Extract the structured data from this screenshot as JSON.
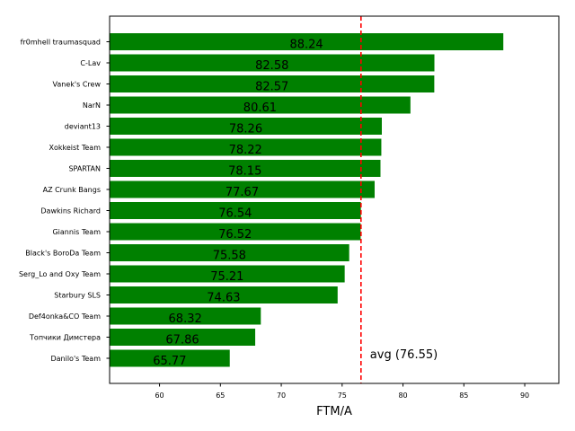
{
  "chart_data": {
    "type": "bar",
    "orientation": "horizontal",
    "title": "",
    "xlabel": "FTM/A",
    "ylabel": "",
    "categories": [
      "fr0mhell traumasquad",
      "C-Lav",
      "Vanek's Crew",
      "NarN",
      "deviant13",
      "Xokkeist Team",
      "SPARTAN",
      "AZ Crunk Bangs",
      "Dawkins Richard",
      "Giannis Team",
      "Black's BoroDa Team",
      "Serg_Lo and Oxy Team",
      "Starbury SLS",
      "Def4onka&CO Team",
      "Топчики Димстера",
      "Danilo's Team"
    ],
    "values": [
      88.24,
      82.58,
      82.57,
      80.61,
      78.26,
      78.22,
      78.15,
      77.67,
      76.54,
      76.52,
      75.58,
      75.21,
      74.63,
      68.32,
      67.86,
      65.77
    ],
    "value_labels": [
      "88.24",
      "82.58",
      "82.57",
      "80.61",
      "78.26",
      "78.22",
      "78.15",
      "77.67",
      "76.54",
      "76.52",
      "75.58",
      "75.21",
      "74.63",
      "68.32",
      "67.86",
      "65.77"
    ],
    "xlim": [
      55.9,
      92.8
    ],
    "xticks": [
      60,
      65,
      70,
      75,
      80,
      85,
      90
    ],
    "xtick_labels": [
      "60",
      "65",
      "70",
      "75",
      "80",
      "85",
      "90"
    ],
    "bar_color": "#008000",
    "reference_line": {
      "value": 76.55,
      "label": "avg (76.55)",
      "color": "#ff0000",
      "style": "dashed"
    },
    "grid": false,
    "legend": "none"
  }
}
